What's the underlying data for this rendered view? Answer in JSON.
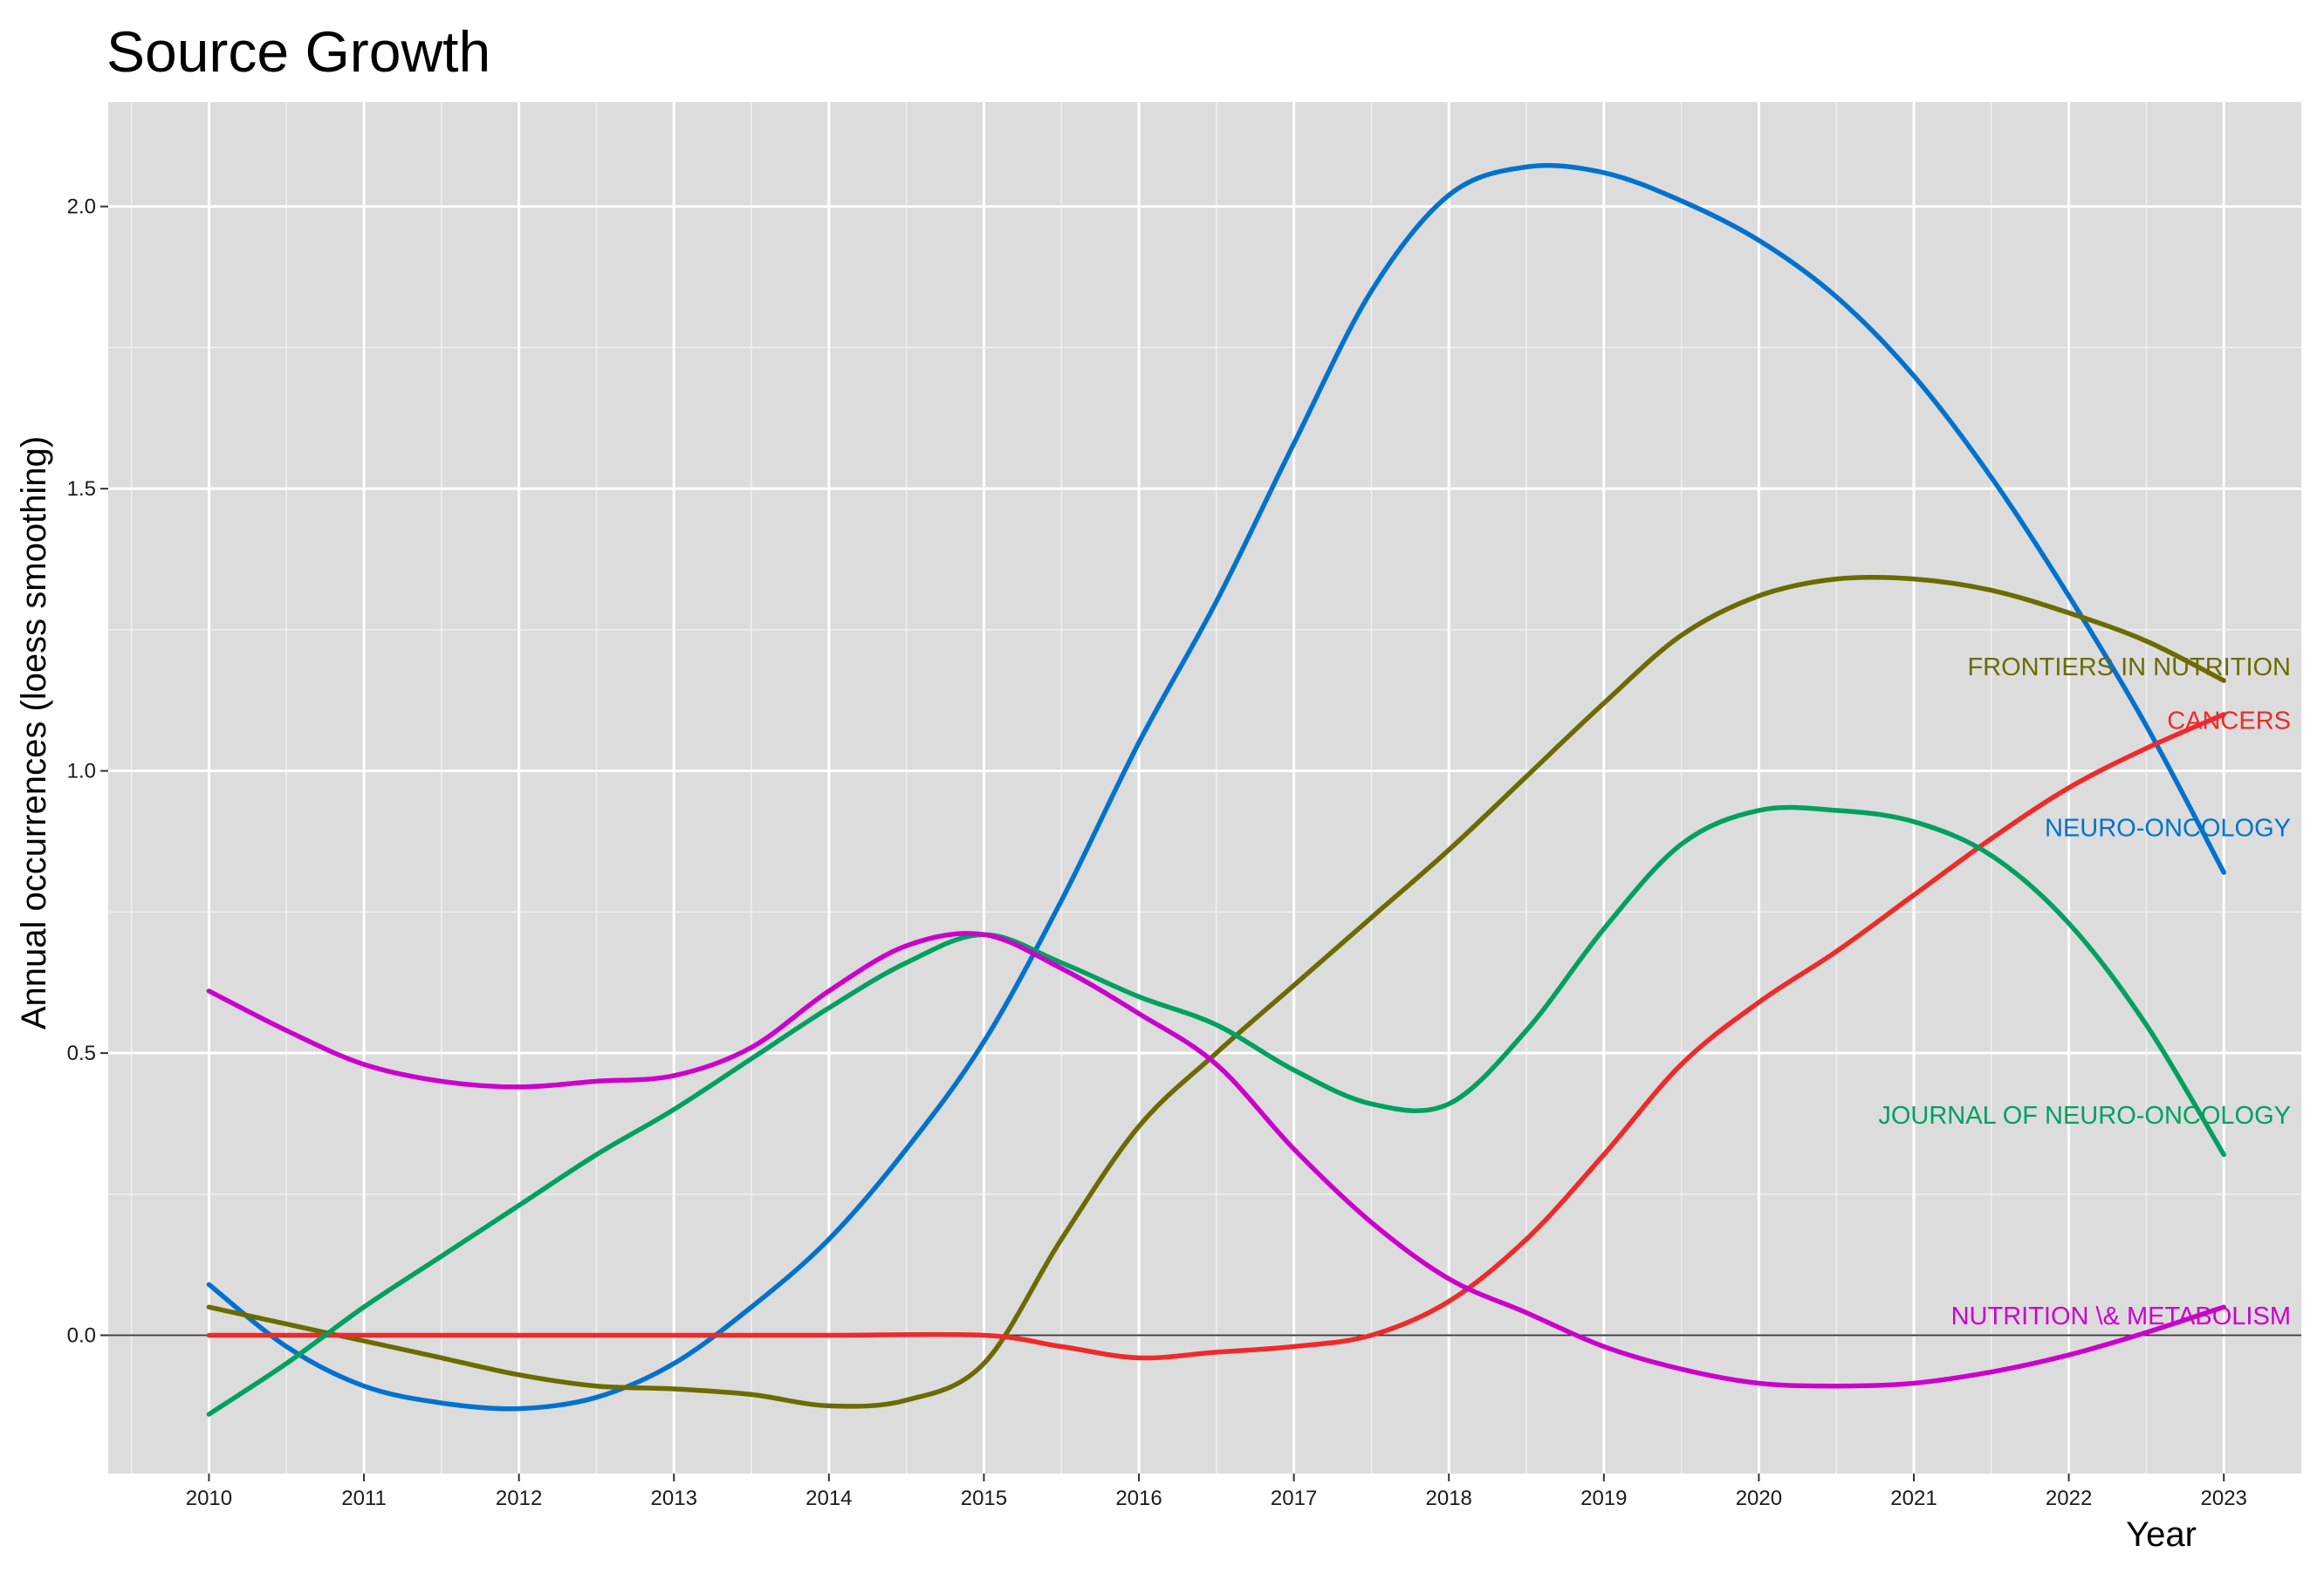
{
  "chart_data": {
    "type": "line",
    "title": "Source Growth",
    "xlabel": "Year",
    "ylabel": "Annual occurrences (loess smoothing)",
    "x": [
      2010,
      2011,
      2012,
      2013,
      2014,
      2015,
      2016,
      2017,
      2018,
      2019,
      2020,
      2021,
      2022,
      2023
    ],
    "x_tick_labels": [
      "2010",
      "2011",
      "2012",
      "2013",
      "2014",
      "2015",
      "2016",
      "2017",
      "2018",
      "2019",
      "2020",
      "2021",
      "2022",
      "2023"
    ],
    "xlim": [
      2009.35,
      2023.5
    ],
    "ylim": [
      -0.245,
      2.185
    ],
    "y_ticks": [
      0.0,
      0.5,
      1.0,
      1.5,
      2.0
    ],
    "y_tick_labels": [
      "0.0",
      "0.5",
      "1.0",
      "1.5",
      "2.0"
    ],
    "grid": true,
    "panel_background": "#dcdcdc",
    "series": [
      {
        "name": "NEURO-ONCOLOGY",
        "color": "#0072ce",
        "points": [
          [
            2010,
            0.09
          ],
          [
            2010.5,
            -0.02
          ],
          [
            2011,
            -0.09
          ],
          [
            2011.5,
            -0.12
          ],
          [
            2012,
            -0.13
          ],
          [
            2012.5,
            -0.11
          ],
          [
            2013,
            -0.05
          ],
          [
            2013.5,
            0.05
          ],
          [
            2014,
            0.17
          ],
          [
            2014.5,
            0.33
          ],
          [
            2015,
            0.52
          ],
          [
            2015.5,
            0.77
          ],
          [
            2016,
            1.05
          ],
          [
            2016.5,
            1.3
          ],
          [
            2017,
            1.58
          ],
          [
            2017.5,
            1.85
          ],
          [
            2018,
            2.02
          ],
          [
            2018.5,
            2.07
          ],
          [
            2019,
            2.06
          ],
          [
            2019.5,
            2.01
          ],
          [
            2020,
            1.94
          ],
          [
            2020.5,
            1.84
          ],
          [
            2021,
            1.7
          ],
          [
            2021.5,
            1.52
          ],
          [
            2022,
            1.31
          ],
          [
            2022.5,
            1.08
          ],
          [
            2023,
            0.82
          ]
        ]
      },
      {
        "name": "FRONTIERS IN NUTRITION",
        "color": "#6b6b00",
        "points": [
          [
            2010,
            0.05
          ],
          [
            2010.5,
            0.02
          ],
          [
            2011,
            -0.01
          ],
          [
            2011.5,
            -0.04
          ],
          [
            2012,
            -0.07
          ],
          [
            2012.5,
            -0.09
          ],
          [
            2013,
            -0.095
          ],
          [
            2013.5,
            -0.105
          ],
          [
            2014,
            -0.125
          ],
          [
            2014.5,
            -0.115
          ],
          [
            2015,
            -0.05
          ],
          [
            2015.5,
            0.17
          ],
          [
            2016,
            0.37
          ],
          [
            2016.5,
            0.5
          ],
          [
            2017,
            0.62
          ],
          [
            2017.5,
            0.74
          ],
          [
            2018,
            0.86
          ],
          [
            2018.5,
            0.99
          ],
          [
            2019,
            1.12
          ],
          [
            2019.5,
            1.24
          ],
          [
            2020,
            1.31
          ],
          [
            2020.5,
            1.34
          ],
          [
            2021,
            1.34
          ],
          [
            2021.5,
            1.32
          ],
          [
            2022,
            1.28
          ],
          [
            2022.5,
            1.23
          ],
          [
            2023,
            1.16
          ]
        ]
      },
      {
        "name": "CANCERS",
        "color": "#ee2a2a",
        "points": [
          [
            2010,
            0.0
          ],
          [
            2011,
            0.0
          ],
          [
            2012,
            0.0
          ],
          [
            2013,
            0.0
          ],
          [
            2014,
            0.0
          ],
          [
            2015,
            0.0
          ],
          [
            2015.5,
            -0.02
          ],
          [
            2016,
            -0.04
          ],
          [
            2016.5,
            -0.03
          ],
          [
            2017,
            -0.02
          ],
          [
            2017.5,
            0.0
          ],
          [
            2018,
            0.06
          ],
          [
            2018.5,
            0.17
          ],
          [
            2019,
            0.32
          ],
          [
            2019.5,
            0.48
          ],
          [
            2020,
            0.59
          ],
          [
            2020.5,
            0.68
          ],
          [
            2021,
            0.78
          ],
          [
            2021.5,
            0.88
          ],
          [
            2022,
            0.97
          ],
          [
            2022.5,
            1.04
          ],
          [
            2023,
            1.1
          ]
        ]
      },
      {
        "name": "JOURNAL OF NEURO-ONCOLOGY",
        "color": "#00a060",
        "points": [
          [
            2010,
            -0.14
          ],
          [
            2010.5,
            -0.05
          ],
          [
            2011,
            0.05
          ],
          [
            2011.5,
            0.14
          ],
          [
            2012,
            0.23
          ],
          [
            2012.5,
            0.32
          ],
          [
            2013,
            0.4
          ],
          [
            2013.5,
            0.49
          ],
          [
            2014,
            0.58
          ],
          [
            2014.5,
            0.66
          ],
          [
            2015,
            0.71
          ],
          [
            2015.5,
            0.66
          ],
          [
            2016,
            0.6
          ],
          [
            2016.5,
            0.55
          ],
          [
            2017,
            0.47
          ],
          [
            2017.5,
            0.41
          ],
          [
            2018,
            0.41
          ],
          [
            2018.5,
            0.54
          ],
          [
            2019,
            0.72
          ],
          [
            2019.5,
            0.87
          ],
          [
            2020,
            0.93
          ],
          [
            2020.5,
            0.93
          ],
          [
            2021,
            0.91
          ],
          [
            2021.5,
            0.85
          ],
          [
            2022,
            0.73
          ],
          [
            2022.5,
            0.55
          ],
          [
            2023,
            0.32
          ]
        ]
      },
      {
        "name": "NUTRITION \\& METABOLISM",
        "color": "#cc00cc",
        "points": [
          [
            2010,
            0.61
          ],
          [
            2010.5,
            0.54
          ],
          [
            2011,
            0.48
          ],
          [
            2011.5,
            0.45
          ],
          [
            2012,
            0.44
          ],
          [
            2012.5,
            0.45
          ],
          [
            2013,
            0.46
          ],
          [
            2013.5,
            0.51
          ],
          [
            2014,
            0.61
          ],
          [
            2014.5,
            0.69
          ],
          [
            2015,
            0.71
          ],
          [
            2015.5,
            0.65
          ],
          [
            2016,
            0.57
          ],
          [
            2016.5,
            0.48
          ],
          [
            2017,
            0.33
          ],
          [
            2017.5,
            0.2
          ],
          [
            2018,
            0.1
          ],
          [
            2018.5,
            0.04
          ],
          [
            2019,
            -0.02
          ],
          [
            2019.5,
            -0.06
          ],
          [
            2020,
            -0.085
          ],
          [
            2020.5,
            -0.09
          ],
          [
            2021,
            -0.085
          ],
          [
            2021.5,
            -0.065
          ],
          [
            2022,
            -0.035
          ],
          [
            2022.5,
            0.005
          ],
          [
            2023,
            0.05
          ]
        ]
      }
    ],
    "annotations": [
      {
        "text": "FRONTIERS IN NUTRITION",
        "color": "#6b6b00",
        "y": 1.185
      },
      {
        "text": "CANCERS",
        "color": "#ee2a2a",
        "y": 1.09
      },
      {
        "text": "NEURO-ONCOLOGY",
        "color": "#0072ce",
        "y": 0.9
      },
      {
        "text": "JOURNAL OF NEURO-ONCOLOGY",
        "color": "#00a060",
        "y": 0.39
      },
      {
        "text": "NUTRITION \\& METABOLISM",
        "color": "#cc00cc",
        "y": 0.035
      }
    ]
  }
}
